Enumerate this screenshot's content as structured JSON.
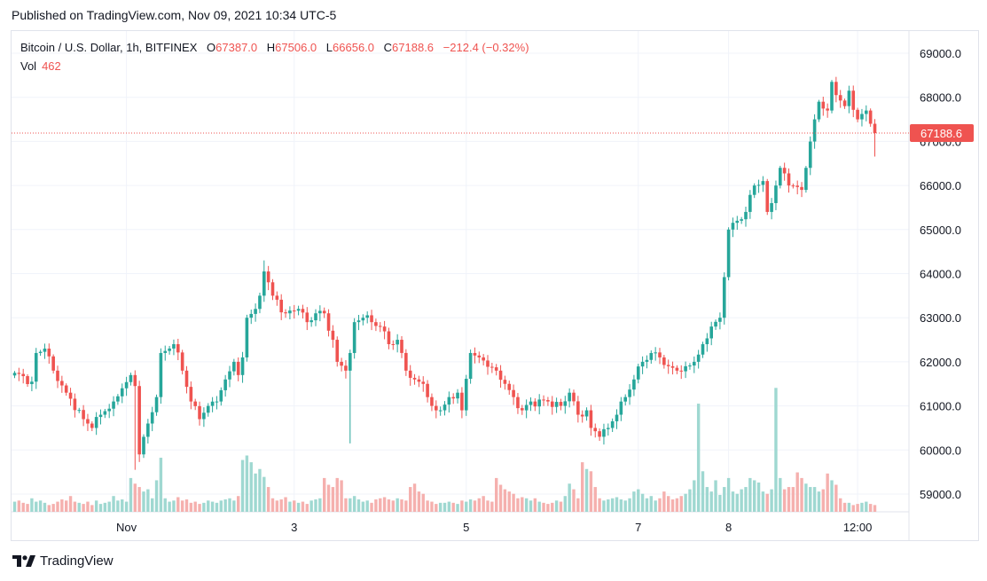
{
  "header": {
    "published": "Published on TradingView.com, Nov 09, 2021 10:34 UTC-5"
  },
  "legend": {
    "symbol": "Bitcoin / U.S. Dollar, 1h, BITFINEX",
    "o_label": "O",
    "o_value": "67387.0",
    "h_label": "H",
    "h_value": "67506.0",
    "l_label": "L",
    "l_value": "66656.0",
    "c_label": "C",
    "c_value": "67188.6",
    "change": "−212.4 (−0.32%)",
    "vol_label": "Vol",
    "vol_value": "462"
  },
  "footer": {
    "brand": "TradingView",
    "logo_icon": "tradingview-logo-icon"
  },
  "colors": {
    "up": "#26a69a",
    "down": "#ef5350",
    "vol_up": "#9fd8d1",
    "vol_down": "#f5b0ae",
    "grid": "#f0f3fa"
  },
  "chart_data": {
    "type": "candlestick",
    "symbol": "Bitcoin / U.S. Dollar, 1h, BITFINEX",
    "last_price": 67188.6,
    "last_price_label": "67188.6",
    "ylim": [
      58600,
      69500
    ],
    "y_ticks": [
      {
        "value": 59000,
        "label": "59000.0"
      },
      {
        "value": 60000,
        "label": "60000.0"
      },
      {
        "value": 61000,
        "label": "61000.0"
      },
      {
        "value": 62000,
        "label": "62000.0"
      },
      {
        "value": 63000,
        "label": "63000.0"
      },
      {
        "value": 64000,
        "label": "64000.0"
      },
      {
        "value": 65000,
        "label": "65000.0"
      },
      {
        "value": 66000,
        "label": "66000.0"
      },
      {
        "value": 67000,
        "label": "67000.0"
      },
      {
        "value": 68000,
        "label": "68000.0"
      },
      {
        "value": 69000,
        "label": "69000.0"
      }
    ],
    "x_ticks": [
      {
        "index": 26,
        "label": "Nov"
      },
      {
        "index": 65,
        "label": "3"
      },
      {
        "index": 105,
        "label": "5"
      },
      {
        "index": 145,
        "label": "7"
      },
      {
        "index": 166,
        "label": "8"
      },
      {
        "index": 196,
        "label": "12:00"
      }
    ],
    "anchors": [
      [
        0,
        61750
      ],
      [
        4,
        61550
      ],
      [
        5,
        62200
      ],
      [
        7,
        62300
      ],
      [
        9,
        61800
      ],
      [
        12,
        61300
      ],
      [
        16,
        60700
      ],
      [
        18,
        60500
      ],
      [
        20,
        60800
      ],
      [
        23,
        61100
      ],
      [
        25,
        61400
      ],
      [
        27,
        61700
      ],
      [
        28,
        61450
      ],
      [
        29,
        59900
      ],
      [
        31,
        60600
      ],
      [
        33,
        61200
      ],
      [
        34,
        62200
      ],
      [
        37,
        62400
      ],
      [
        39,
        61800
      ],
      [
        41,
        61100
      ],
      [
        43,
        60700
      ],
      [
        45,
        61000
      ],
      [
        47,
        61100
      ],
      [
        49,
        61600
      ],
      [
        51,
        62000
      ],
      [
        52,
        61700
      ],
      [
        53,
        62100
      ],
      [
        54,
        63000
      ],
      [
        56,
        63200
      ],
      [
        57,
        63500
      ],
      [
        58,
        64050
      ],
      [
        60,
        63500
      ],
      [
        63,
        63100
      ],
      [
        66,
        63200
      ],
      [
        68,
        62900
      ],
      [
        70,
        63100
      ],
      [
        72,
        63100
      ],
      [
        74,
        62500
      ],
      [
        75,
        62000
      ],
      [
        77,
        61800
      ],
      [
        78,
        62200
      ],
      [
        79,
        62900
      ],
      [
        81,
        63000
      ],
      [
        83,
        62900
      ],
      [
        85,
        62800
      ],
      [
        87,
        62400
      ],
      [
        89,
        62500
      ],
      [
        91,
        61800
      ],
      [
        93,
        61600
      ],
      [
        95,
        61500
      ],
      [
        97,
        61000
      ],
      [
        99,
        60900
      ],
      [
        101,
        61200
      ],
      [
        103,
        61300
      ],
      [
        104,
        60900
      ],
      [
        106,
        62200
      ],
      [
        108,
        62100
      ],
      [
        112,
        61800
      ],
      [
        114,
        61500
      ],
      [
        116,
        61200
      ],
      [
        118,
        60900
      ],
      [
        120,
        61100
      ],
      [
        124,
        61100
      ],
      [
        127,
        61000
      ],
      [
        129,
        61300
      ],
      [
        131,
        60800
      ],
      [
        133,
        60900
      ],
      [
        134,
        60500
      ],
      [
        136,
        60300
      ],
      [
        138,
        60500
      ],
      [
        140,
        60800
      ],
      [
        142,
        61200
      ],
      [
        144,
        61600
      ],
      [
        146,
        62000
      ],
      [
        148,
        62200
      ],
      [
        150,
        62100
      ],
      [
        152,
        61900
      ],
      [
        154,
        61800
      ],
      [
        156,
        61900
      ],
      [
        158,
        62000
      ],
      [
        160,
        62400
      ],
      [
        162,
        62800
      ],
      [
        164,
        63000
      ],
      [
        166,
        65000
      ],
      [
        168,
        65200
      ],
      [
        170,
        65400
      ],
      [
        172,
        66000
      ],
      [
        174,
        66100
      ],
      [
        175,
        65400
      ],
      [
        176,
        65600
      ],
      [
        178,
        66400
      ],
      [
        180,
        66000
      ],
      [
        183,
        65900
      ],
      [
        184,
        66400
      ],
      [
        186,
        67500
      ],
      [
        187,
        67900
      ],
      [
        189,
        67700
      ],
      [
        190,
        68350
      ],
      [
        191,
        68050
      ],
      [
        193,
        67800
      ],
      [
        194,
        68150
      ],
      [
        196,
        67500
      ],
      [
        198,
        67700
      ],
      [
        199,
        67400
      ],
      [
        200,
        67189
      ]
    ],
    "volume": [
      9,
      10,
      8,
      7,
      12,
      9,
      10,
      8,
      6,
      7,
      9,
      11,
      10,
      14,
      9,
      8,
      7,
      9,
      6,
      10,
      7,
      8,
      9,
      14,
      10,
      11,
      9,
      30,
      25,
      22,
      18,
      20,
      12,
      28,
      48,
      12,
      9,
      10,
      13,
      10,
      11,
      8,
      9,
      7,
      8,
      10,
      9,
      8,
      10,
      11,
      12,
      10,
      14,
      46,
      50,
      44,
      34,
      38,
      31,
      22,
      12,
      10,
      11,
      13,
      9,
      10,
      8,
      9,
      7,
      10,
      11,
      12,
      30,
      24,
      22,
      30,
      28,
      12,
      12,
      14,
      11,
      9,
      10,
      8,
      11,
      12,
      13,
      11,
      10,
      12,
      11,
      10,
      22,
      25,
      18,
      16,
      10,
      9,
      7,
      8,
      8,
      9,
      8,
      7,
      10,
      9,
      11,
      10,
      12,
      14,
      10,
      9,
      30,
      24,
      20,
      18,
      16,
      12,
      13,
      12,
      10,
      12,
      9,
      8,
      7,
      8,
      10,
      9,
      14,
      25,
      20,
      12,
      44,
      38,
      36,
      22,
      12,
      10,
      11,
      12,
      13,
      11,
      10,
      12,
      18,
      20,
      16,
      12,
      14,
      10,
      12,
      18,
      14,
      11,
      12,
      14,
      16,
      20,
      28,
      96,
      36,
      22,
      18,
      28,
      15,
      22,
      30,
      18,
      16,
      20,
      22,
      30,
      28,
      26,
      18,
      16,
      20,
      110,
      30,
      20,
      22,
      22,
      35,
      30,
      25,
      22,
      22,
      18,
      20,
      34,
      28,
      24,
      12,
      8,
      8,
      6,
      7,
      8,
      9,
      7,
      6
    ]
  }
}
